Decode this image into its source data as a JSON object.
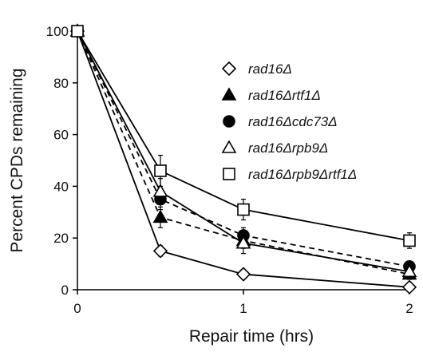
{
  "chart_data": {
    "type": "line",
    "title": "",
    "xlabel": "Repair time (hrs)",
    "ylabel": "Percent CPDs remaining",
    "xlim": [
      0,
      2
    ],
    "ylim": [
      0,
      100
    ],
    "xticks": [
      0,
      1,
      2
    ],
    "yticks": [
      0,
      20,
      40,
      60,
      80,
      100
    ],
    "grid": false,
    "legend_position": "top-right",
    "x": [
      0,
      0.5,
      1,
      2
    ],
    "series": [
      {
        "name": "rad16Δ",
        "values": [
          100,
          15,
          6,
          1
        ],
        "error": [
          0,
          2,
          1,
          1
        ],
        "marker": "diamond-open",
        "line": "solid"
      },
      {
        "name": "rad16Δrtf1Δ",
        "values": [
          100,
          28,
          19,
          6
        ],
        "error": [
          0,
          4,
          3,
          2
        ],
        "marker": "triangle-filled",
        "line": "dashed"
      },
      {
        "name": "rad16Δcdc73Δ",
        "values": [
          100,
          35,
          21,
          9
        ],
        "error": [
          0,
          4,
          3,
          2
        ],
        "marker": "circle-filled",
        "line": "dashed"
      },
      {
        "name": "rad16Δrpb9Δ",
        "values": [
          100,
          38,
          18,
          7
        ],
        "error": [
          0,
          5,
          4,
          2
        ],
        "marker": "triangle-open",
        "line": "solid"
      },
      {
        "name": "rad16Δrpb9Δrtf1Δ",
        "values": [
          100,
          46,
          31,
          19
        ],
        "error": [
          0,
          6,
          4,
          3
        ],
        "marker": "square-open",
        "line": "solid"
      }
    ]
  }
}
